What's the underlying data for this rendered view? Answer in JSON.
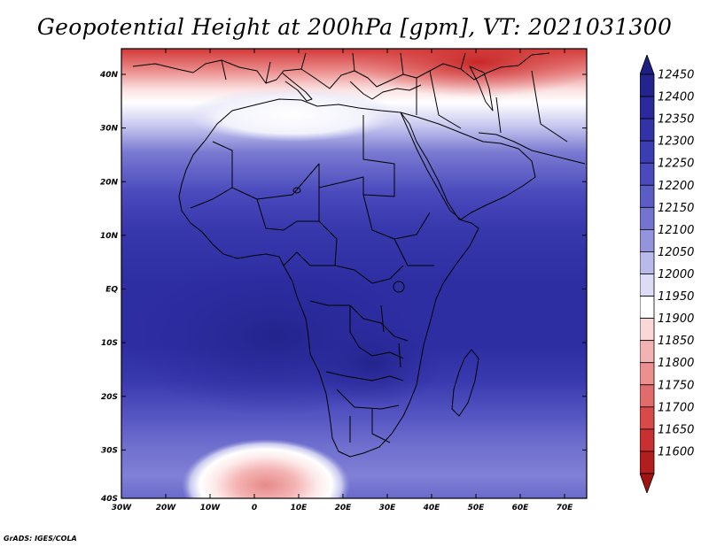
{
  "title": "Geopotential Height at 200hPa [gpm], VT: 2021031300",
  "credit": "GrADS: IGES/COLA",
  "map": {
    "lon_labels": [
      "30W",
      "20W",
      "10W",
      "0",
      "10E",
      "20E",
      "30E",
      "40E",
      "50E",
      "60E",
      "70E"
    ],
    "lat_labels": [
      "40N",
      "30N",
      "20N",
      "10N",
      "EQ",
      "10S",
      "20S",
      "30S",
      "40S"
    ]
  },
  "colorbar": {
    "levels": [
      "12450",
      "12400",
      "12350",
      "12300",
      "12250",
      "12200",
      "12150",
      "12100",
      "12050",
      "12000",
      "11950",
      "11900",
      "11850",
      "11800",
      "11750",
      "11700",
      "11650",
      "11600"
    ],
    "colors": [
      "#24248e",
      "#2a2a9c",
      "#3333a8",
      "#3c3cb3",
      "#4a4abd",
      "#5c5cc6",
      "#7373d0",
      "#9494dc",
      "#b9b9ea",
      "#dcdcf6",
      "#ffffff",
      "#fad8d8",
      "#f4b3b3",
      "#ec8f8f",
      "#e26c6c",
      "#d84a4a",
      "#c93030",
      "#b21e1e"
    ],
    "top_color": "#1f1f82",
    "bottom_color": "#a01414"
  }
}
